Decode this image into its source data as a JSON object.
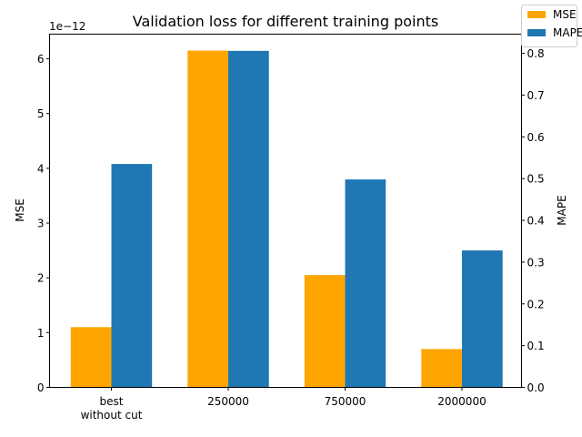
{
  "chart_data": {
    "type": "bar",
    "title": "Validation loss for different training points",
    "categories": [
      [
        "best",
        "without cut"
      ],
      [
        "250000"
      ],
      [
        "750000"
      ],
      [
        "2000000"
      ]
    ],
    "series": [
      {
        "name": "MSE",
        "axis": "left",
        "color": "#ffa500",
        "values": [
          1.1e-12,
          6.15e-12,
          2.05e-12,
          7e-13
        ]
      },
      {
        "name": "MAPE",
        "axis": "right",
        "color": "#1f77b4",
        "values": [
          0.535,
          0.806,
          0.498,
          0.328
        ]
      }
    ],
    "left_axis": {
      "label": "MSE",
      "offset_text": "1e−12",
      "scale": 1e-12,
      "ylim": [
        0,
        6.45
      ],
      "ticks": [
        0,
        1,
        2,
        3,
        4,
        5,
        6
      ],
      "tick_labels": [
        "0",
        "1",
        "2",
        "3",
        "4",
        "5",
        "6"
      ]
    },
    "right_axis": {
      "label": "MAPE",
      "ylim": [
        0,
        0.846
      ],
      "ticks": [
        0,
        0.1,
        0.2,
        0.3,
        0.4,
        0.5,
        0.6,
        0.7,
        0.8
      ],
      "tick_labels": [
        "0.0",
        "0.1",
        "0.2",
        "0.3",
        "0.4",
        "0.5",
        "0.6",
        "0.7",
        "0.8"
      ]
    },
    "legend": {
      "position": "top-right"
    },
    "grid": false
  }
}
